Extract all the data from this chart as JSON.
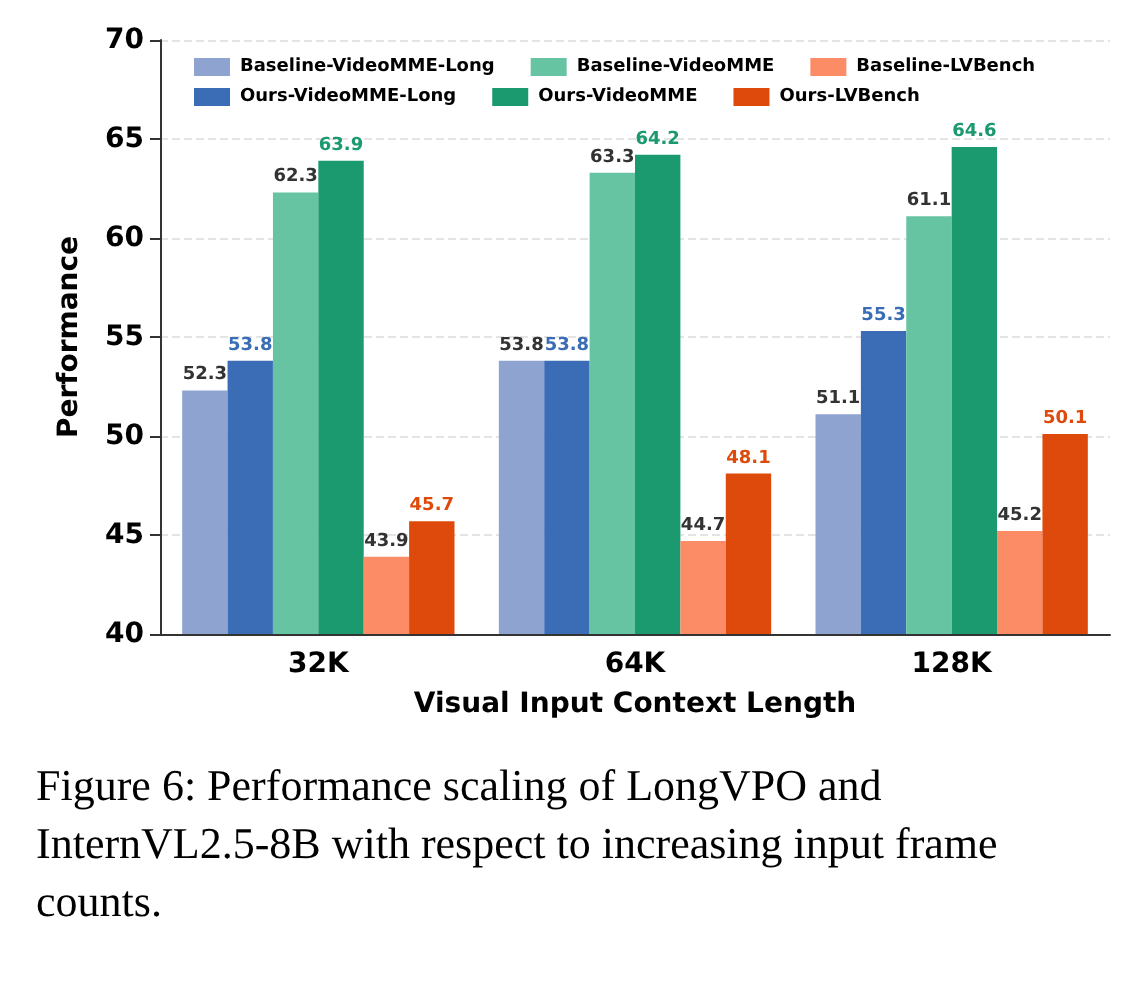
{
  "chart_data": {
    "type": "bar",
    "xlabel": "Visual Input Context Length",
    "ylabel": "Performance",
    "categories": [
      "32K",
      "64K",
      "128K"
    ],
    "series": [
      {
        "name": "Baseline-VideoMME-Long",
        "color": "#8fa3d1",
        "values": [
          52.3,
          53.8,
          51.1
        ]
      },
      {
        "name": "Ours-VideoMME-Long",
        "color": "#3a6db5",
        "values": [
          53.8,
          53.8,
          55.3
        ]
      },
      {
        "name": "Baseline-VideoMME",
        "color": "#66c4a3",
        "values": [
          62.3,
          63.3,
          61.1
        ]
      },
      {
        "name": "Ours-VideoMME",
        "color": "#1a9a6e",
        "values": [
          63.9,
          64.2,
          64.6
        ]
      },
      {
        "name": "Baseline-LVBench",
        "color": "#fb8c66",
        "values": [
          43.9,
          44.7,
          45.2
        ]
      },
      {
        "name": "Ours-LVBench",
        "color": "#dd4a0b",
        "values": [
          45.7,
          48.1,
          50.1
        ]
      }
    ],
    "ylim": [
      40,
      70
    ],
    "yticks": [
      40,
      45,
      50,
      55,
      60,
      65,
      70
    ],
    "grid": "y",
    "legend": "top",
    "data_labels": true,
    "annotations": [
      "Figure 6: Performance scaling of LongVPO and InternVL2.5-8B with respect to increasing input frame counts."
    ]
  }
}
